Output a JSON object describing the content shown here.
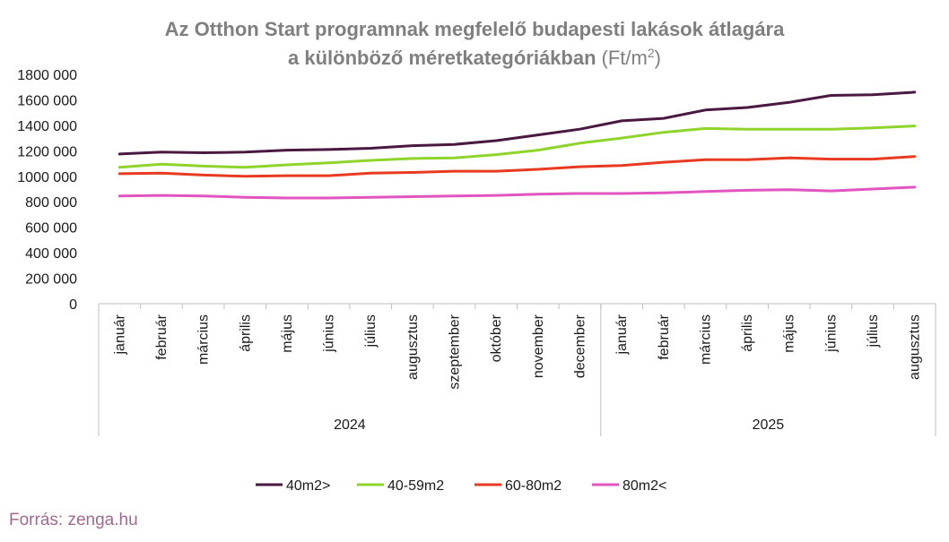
{
  "chart_data": {
    "type": "line",
    "title_line1": "Az Otthon Start programnak megfelelő budapesti lakások átlagára",
    "title_line2": "a különböző méretkategóriákban",
    "title_unit_prefix": "(Ft/m",
    "title_unit_sup": "2",
    "title_unit_suffix": ")",
    "ylim": [
      0,
      1800000
    ],
    "yticks": [
      0,
      200000,
      400000,
      600000,
      800000,
      1000000,
      1200000,
      1400000,
      1600000,
      1800000
    ],
    "ytick_labels": [
      "0",
      "200 000",
      "400 000",
      "600 000",
      "800 000",
      "1000 000",
      "1200 000",
      "1400 000",
      "1600 000",
      "1800 000"
    ],
    "categories": [
      "január",
      "február",
      "március",
      "április",
      "május",
      "június",
      "július",
      "augusztus",
      "szeptember",
      "október",
      "november",
      "december",
      "január",
      "február",
      "március",
      "április",
      "május",
      "június",
      "július",
      "augusztus"
    ],
    "year_groups": [
      {
        "label": "2024",
        "count": 12
      },
      {
        "label": "2025",
        "count": 8
      }
    ],
    "series": [
      {
        "name": "40m2>",
        "color": "#4a1942",
        "values": [
          1175000,
          1190000,
          1185000,
          1190000,
          1205000,
          1210000,
          1220000,
          1240000,
          1250000,
          1280000,
          1325000,
          1370000,
          1435000,
          1455000,
          1520000,
          1540000,
          1580000,
          1635000,
          1640000,
          1660000
        ]
      },
      {
        "name": "40-59m2",
        "color": "#8fd42b",
        "values": [
          1070000,
          1095000,
          1080000,
          1070000,
          1090000,
          1105000,
          1125000,
          1140000,
          1145000,
          1170000,
          1205000,
          1260000,
          1300000,
          1345000,
          1375000,
          1370000,
          1370000,
          1370000,
          1380000,
          1395000
        ]
      },
      {
        "name": "60-80m2",
        "color": "#e83a20",
        "values": [
          1020000,
          1025000,
          1010000,
          1000000,
          1005000,
          1005000,
          1025000,
          1030000,
          1040000,
          1040000,
          1055000,
          1075000,
          1085000,
          1110000,
          1130000,
          1130000,
          1145000,
          1135000,
          1135000,
          1155000
        ]
      },
      {
        "name": "80m2<",
        "color": "#e055c0",
        "values": [
          845000,
          850000,
          845000,
          835000,
          830000,
          830000,
          835000,
          840000,
          845000,
          850000,
          860000,
          865000,
          865000,
          870000,
          880000,
          890000,
          895000,
          885000,
          900000,
          915000
        ]
      }
    ],
    "legend_position": "bottom-center"
  },
  "source": "Forrás: zenga.hu"
}
